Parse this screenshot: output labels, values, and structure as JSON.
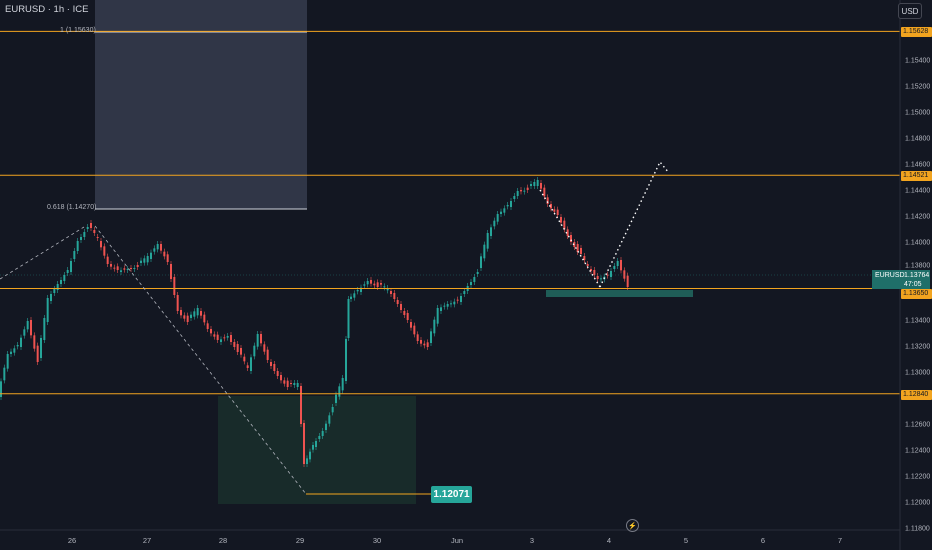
{
  "header": {
    "symbol": "EURUSD · 1h · ICE",
    "currency_button": "USD"
  },
  "price_axis": {
    "labels": [
      "1.15400",
      "1.15200",
      "1.15000",
      "1.14800",
      "1.14600",
      "1.14400",
      "1.14200",
      "1.14000",
      "1.13800",
      "1.13400",
      "1.13200",
      "1.13000",
      "1.12600",
      "1.12400",
      "1.12200",
      "1.12000",
      "1.11800"
    ]
  },
  "time_axis": {
    "labels": [
      "26",
      "27",
      "28",
      "29",
      "30",
      "Jun",
      "3",
      "4",
      "5",
      "6",
      "7"
    ]
  },
  "levels": [
    {
      "price": 1.15628,
      "label": "1.15628"
    },
    {
      "price": 1.14521,
      "label": "1.14521"
    },
    {
      "price": 1.1365,
      "label": "1.13650"
    },
    {
      "price": 1.1284,
      "label": "1.12840"
    }
  ],
  "current_price": {
    "symbol": "EURUSD",
    "price": "1.13764",
    "countdown": "47:05"
  },
  "fib_labels": {
    "level_1": "1 (1.15630)",
    "level_0618": "0.618 (1.14270)"
  },
  "low_marker": {
    "value": "1.12071"
  },
  "colors": {
    "up": "#26a69a",
    "down": "#ef5350",
    "level": "#f2a41f",
    "background": "#131722"
  },
  "icons": {
    "flash": "lightning-icon"
  }
}
